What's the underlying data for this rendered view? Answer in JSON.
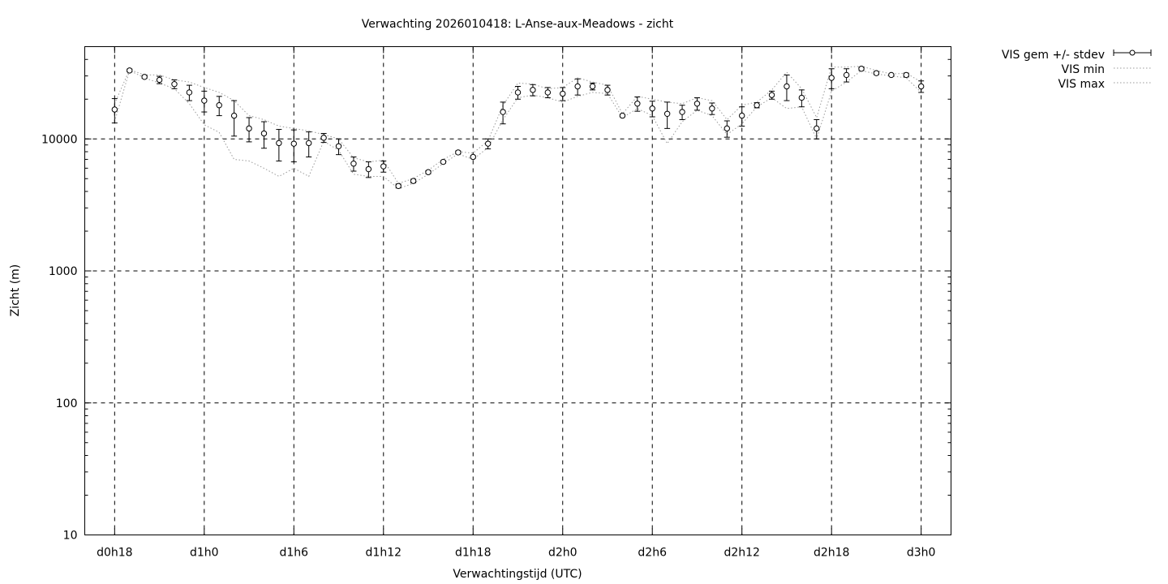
{
  "chart_data": {
    "type": "line",
    "title": "Verwachting 2026010418: L-Anse-aux-Meadows - zicht",
    "xlabel": "Verwachtingstijd (UTC)",
    "ylabel": "Zicht (m)",
    "y_scale": "log",
    "ylim": [
      10,
      50000
    ],
    "xlim_hours": [
      16,
      74
    ],
    "grid": true,
    "legend_position": "top-right, outside plot",
    "x_tick_labels": [
      "d0h18",
      "d1h0",
      "d1h6",
      "d1h12",
      "d1h18",
      "d2h0",
      "d2h6",
      "d2h12",
      "d2h18",
      "d3h0"
    ],
    "y_tick_labels": [
      "10",
      "100",
      "1000",
      "10000"
    ],
    "legend": [
      "VIS gem +/- stdev",
      "VIS min",
      "VIS max"
    ],
    "x_hours": [
      18,
      19,
      20,
      21,
      22,
      23,
      24,
      25,
      26,
      27,
      28,
      29,
      30,
      31,
      32,
      33,
      34,
      35,
      36,
      37,
      38,
      39,
      40,
      41,
      42,
      43,
      44,
      45,
      46,
      47,
      48,
      49,
      50,
      51,
      52,
      53,
      54,
      55,
      56,
      57,
      58,
      59,
      60,
      61,
      62,
      63,
      64,
      65,
      66,
      67,
      68,
      69,
      70,
      71,
      72
    ],
    "series": [
      {
        "name": "VIS gem +/- stdev",
        "style": "points-errorbars",
        "values": [
          16700,
          33000,
          29500,
          28000,
          26000,
          22500,
          19500,
          18000,
          15000,
          12000,
          11000,
          9300,
          9200,
          9300,
          10200,
          8800,
          6500,
          5900,
          6200,
          4400,
          4800,
          5600,
          6700,
          7900,
          7300,
          9200,
          16000,
          22500,
          23500,
          22500,
          22000,
          25000,
          25000,
          23500,
          15000,
          18500,
          17000,
          15500,
          16000,
          18500,
          17000,
          12000,
          15000,
          18000,
          21500,
          25000,
          20500,
          12000,
          29000,
          30500,
          34000,
          31500,
          30500,
          30500,
          25000
        ],
        "errors": [
          3500,
          800,
          700,
          1800,
          2000,
          3000,
          3500,
          3000,
          4500,
          2500,
          2500,
          2500,
          2500,
          2000,
          800,
          1200,
          800,
          800,
          600,
          150,
          150,
          150,
          150,
          200,
          150,
          800,
          3000,
          2500,
          2300,
          2000,
          2500,
          3500,
          1500,
          2000,
          300,
          2300,
          2300,
          3500,
          2000,
          2000,
          1700,
          1700,
          2500,
          800,
          1500,
          5500,
          3000,
          2000,
          5000,
          3500,
          1000,
          800,
          500,
          1000,
          2500
        ]
      },
      {
        "name": "VIS min",
        "style": "dotted",
        "values": [
          13500,
          33000,
          29000,
          26500,
          24000,
          18500,
          12800,
          11200,
          7000,
          6800,
          6000,
          5200,
          6000,
          5200,
          9600,
          8200,
          5400,
          5200,
          5200,
          4200,
          4600,
          5400,
          6500,
          7700,
          7000,
          8600,
          14000,
          20500,
          21500,
          20500,
          19000,
          21000,
          22500,
          22000,
          14500,
          17000,
          15000,
          9200,
          13500,
          16500,
          15000,
          10800,
          13000,
          17500,
          20500,
          17000,
          17500,
          10000,
          23000,
          27000,
          33000,
          31000,
          30000,
          29000,
          22500
        ]
      },
      {
        "name": "VIS max",
        "style": "dotted",
        "values": [
          18500,
          33500,
          30500,
          30500,
          28000,
          27000,
          24500,
          22500,
          19500,
          15000,
          14000,
          12500,
          12000,
          11500,
          10800,
          10000,
          7200,
          6700,
          6900,
          4600,
          5000,
          5800,
          7000,
          8000,
          7800,
          9700,
          18000,
          26500,
          26000,
          24000,
          24500,
          29000,
          27000,
          25500,
          15500,
          21000,
          20000,
          19000,
          18500,
          20500,
          19500,
          14000,
          18000,
          19000,
          23500,
          32000,
          24000,
          14500,
          35000,
          35000,
          35500,
          33000,
          31000,
          31500,
          27000
        ]
      }
    ]
  }
}
